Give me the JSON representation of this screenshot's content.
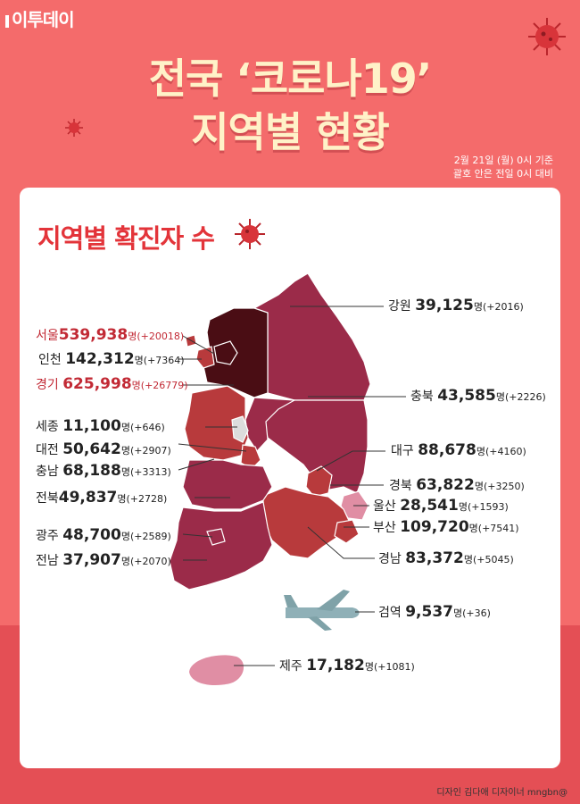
{
  "brand": "이투데이",
  "title": {
    "line1": "전국 ‘코로나19’",
    "line2": "지역별 현황"
  },
  "basis": {
    "line1": "2월 21일 (월) 0시 기준",
    "line2": "괄호 안은 전일 0시 대비"
  },
  "section_title": "지역별 확진자 수",
  "unit": "명",
  "colors": {
    "background": "#f46b6b",
    "title": "#fff2c8",
    "accent": "#e3343a",
    "capital": "#4a0d14",
    "region_dark": "#9b2b49",
    "region_mid": "#b83a3c",
    "jeju": "#e08ea4"
  },
  "regions": [
    {
      "name": "강원",
      "count": "39,125",
      "delta": "(+2016)",
      "highlight": false
    },
    {
      "name": "서울",
      "count": "539,938",
      "delta": "(+20018)",
      "highlight": true
    },
    {
      "name": "인천",
      "count": "142,312",
      "delta": "(+7364)",
      "highlight": false
    },
    {
      "name": "경기",
      "count": "625,998",
      "delta": "(+26779)",
      "highlight": true
    },
    {
      "name": "충북",
      "count": "43,585",
      "delta": "(+2226)",
      "highlight": false
    },
    {
      "name": "세종",
      "count": "11,100",
      "delta": "(+646)",
      "highlight": false
    },
    {
      "name": "대전",
      "count": "50,642",
      "delta": "(+2907)",
      "highlight": false
    },
    {
      "name": "대구",
      "count": "88,678",
      "delta": "(+4160)",
      "highlight": false
    },
    {
      "name": "충남",
      "count": "68,188",
      "delta": "(+3313)",
      "highlight": false
    },
    {
      "name": "경북",
      "count": "63,822",
      "delta": "(+3250)",
      "highlight": false
    },
    {
      "name": "전북",
      "count": "49,837",
      "delta": "(+2728)",
      "highlight": false
    },
    {
      "name": "울산",
      "count": "28,541",
      "delta": "(+1593)",
      "highlight": false
    },
    {
      "name": "부산",
      "count": "109,720",
      "delta": "(+7541)",
      "highlight": false
    },
    {
      "name": "광주",
      "count": "48,700",
      "delta": "(+2589)",
      "highlight": false
    },
    {
      "name": "경남",
      "count": "83,372",
      "delta": "(+5045)",
      "highlight": false
    },
    {
      "name": "전남",
      "count": "37,907",
      "delta": "(+2070)",
      "highlight": false
    },
    {
      "name": "검역",
      "count": "9,537",
      "delta": "(+36)",
      "highlight": false
    },
    {
      "name": "제주",
      "count": "17,182",
      "delta": "(+1081)",
      "highlight": false
    }
  ],
  "credit": "디자인 김다애 디자이너 mngbn@",
  "icons": [
    "virus-icon",
    "airplane-icon"
  ]
}
